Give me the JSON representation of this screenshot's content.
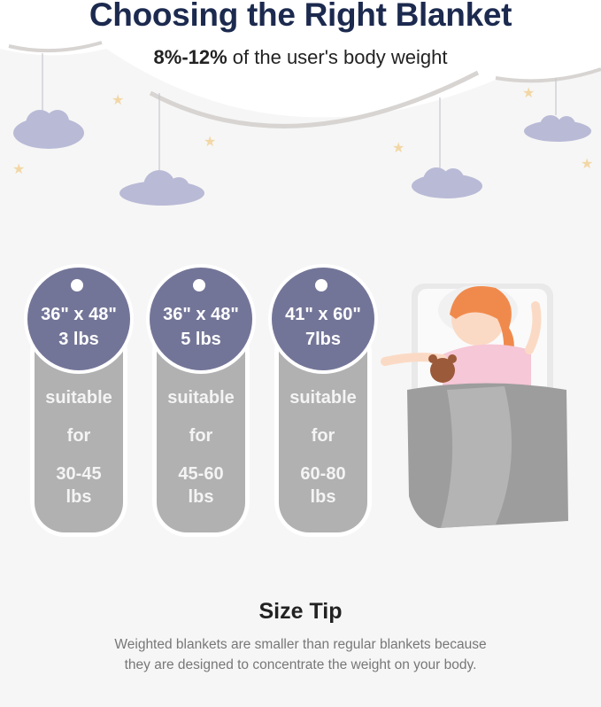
{
  "header": {
    "title": "Choosing the Right Blanket",
    "subtitle_bold": "8%-12%",
    "subtitle_rest": " of the user's body weight"
  },
  "tags": [
    {
      "size": "36\" x 48\"",
      "weight": "3 lbs",
      "line1": "suitable",
      "line2": "for",
      "range": "30-45",
      "unit": "lbs"
    },
    {
      "size": "36\" x 48\"",
      "weight": "5 lbs",
      "line1": "suitable",
      "line2": "for",
      "range": "45-60",
      "unit": "lbs"
    },
    {
      "size": "41\" x 60\"",
      "weight": "7lbs",
      "line1": "suitable",
      "line2": "for",
      "range": "60-80",
      "unit": "lbs"
    }
  ],
  "tip": {
    "title": "Size Tip",
    "line1": "Weighted blankets are smaller than regular blankets because",
    "line2": "they are designed to concentrate the weight on your body."
  },
  "colors": {
    "title": "#1c2a4f",
    "tag_circle": "#737598",
    "tag_pill": "#b1b1b1",
    "cloud": "#b9bad6",
    "star": "#f2d7a6"
  }
}
